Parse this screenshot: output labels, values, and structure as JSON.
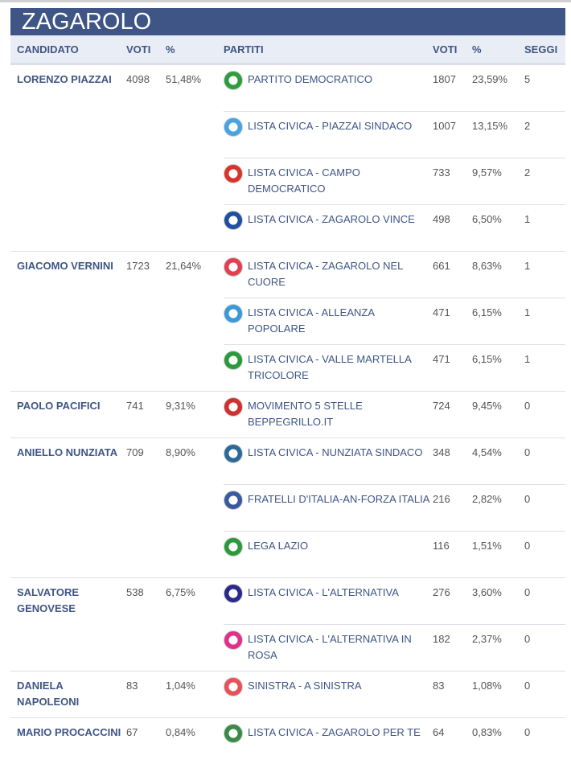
{
  "title": "ZAGAROLO",
  "headers": {
    "candidate": "CANDIDATO",
    "votes": "VOTI",
    "pct": "%",
    "parties": "PARTITI",
    "party_votes": "VOTI",
    "party_pct": "%",
    "seats": "SEGGI"
  },
  "candidates": [
    {
      "name": "LORENZO PIAZZAI",
      "votes": "4098",
      "pct": "51,48%",
      "parties": [
        {
          "name": "PARTITO DEMOCRATICO",
          "votes": "1807",
          "pct": "23,59%",
          "seats": "5",
          "logo": "#2e9c3f"
        },
        {
          "name": "LISTA CIVICA - PIAZZAI SINDACO",
          "votes": "1007",
          "pct": "13,15%",
          "seats": "2",
          "logo": "#4aa3df"
        },
        {
          "name": "LISTA CIVICA - CAMPO DEMOCRATICO",
          "votes": "733",
          "pct": "9,57%",
          "seats": "2",
          "logo": "#d9342b"
        },
        {
          "name": "LISTA CIVICA - ZAGAROLO VINCE",
          "votes": "498",
          "pct": "6,50%",
          "seats": "1",
          "logo": "#1f4fa0"
        }
      ]
    },
    {
      "name": "GIACOMO VERNINI",
      "votes": "1723",
      "pct": "21,64%",
      "parties": [
        {
          "name": "LISTA CIVICA - ZAGAROLO NEL CUORE",
          "votes": "661",
          "pct": "8,63%",
          "seats": "1",
          "logo": "#e04050"
        },
        {
          "name": "LISTA CIVICA - ALLEANZA POPOLARE",
          "votes": "471",
          "pct": "6,15%",
          "seats": "1",
          "logo": "#3a9ad8"
        },
        {
          "name": "LISTA CIVICA - VALLE MARTELLA TRICOLORE",
          "votes": "471",
          "pct": "6,15%",
          "seats": "1",
          "logo": "#2a9a3a"
        }
      ]
    },
    {
      "name": "PAOLO PACIFICI",
      "votes": "741",
      "pct": "9,31%",
      "parties": [
        {
          "name": "MOVIMENTO 5 STELLE BEPPEGRILLO.IT",
          "votes": "724",
          "pct": "9,45%",
          "seats": "0",
          "logo": "#d03030"
        }
      ]
    },
    {
      "name": "ANIELLO NUNZIATA",
      "votes": "709",
      "pct": "8,90%",
      "parties": [
        {
          "name": "LISTA CIVICA - NUNZIATA SINDACO",
          "votes": "348",
          "pct": "4,54%",
          "seats": "0",
          "logo": "#2a6a9a"
        },
        {
          "name": "FRATELLI D'ITALIA-AN-FORZA ITALIA",
          "votes": "216",
          "pct": "2,82%",
          "seats": "0",
          "logo": "#3a5aa0"
        },
        {
          "name": "LEGA LAZIO",
          "votes": "116",
          "pct": "1,51%",
          "seats": "0",
          "logo": "#2a9a3a"
        }
      ]
    },
    {
      "name": "SALVATORE GENOVESE",
      "votes": "538",
      "pct": "6,75%",
      "parties": [
        {
          "name": "LISTA CIVICA - L'ALTERNATIVA",
          "votes": "276",
          "pct": "3,60%",
          "seats": "0",
          "logo": "#2a2a8a"
        },
        {
          "name": "LISTA CIVICA - L'ALTERNATIVA IN ROSA",
          "votes": "182",
          "pct": "2,37%",
          "seats": "0",
          "logo": "#e0308a"
        }
      ]
    },
    {
      "name": "DANIELA NAPOLEONI",
      "votes": "83",
      "pct": "1,04%",
      "parties": [
        {
          "name": "SINISTRA - A SINISTRA",
          "votes": "83",
          "pct": "1,08%",
          "seats": "0",
          "logo": "#e8505a"
        }
      ]
    },
    {
      "name": "MARIO PROCACCINI",
      "votes": "67",
      "pct": "0,84%",
      "parties": [
        {
          "name": "LISTA CIVICA - ZAGAROLO PER TE",
          "votes": "64",
          "pct": "0,83%",
          "seats": "0",
          "logo": "#3a8a4a"
        }
      ]
    }
  ]
}
